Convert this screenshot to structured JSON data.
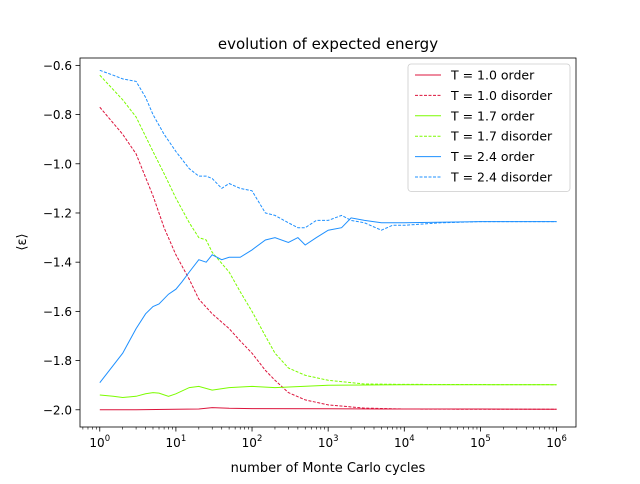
{
  "chart_data": {
    "type": "line",
    "title": "evolution of expected energy",
    "xlabel": "number of Monte Carlo cycles",
    "ylabel": "⟨ε⟩",
    "xscale": "log",
    "xlim": [
      0.55,
      1800000
    ],
    "ylim": [
      -2.07,
      -0.57
    ],
    "x_ticks": [
      {
        "value": 1,
        "base": "10",
        "exp": "0"
      },
      {
        "value": 10,
        "base": "10",
        "exp": "1"
      },
      {
        "value": 100,
        "base": "10",
        "exp": "2"
      },
      {
        "value": 1000,
        "base": "10",
        "exp": "3"
      },
      {
        "value": 10000,
        "base": "10",
        "exp": "4"
      },
      {
        "value": 100000,
        "base": "10",
        "exp": "5"
      },
      {
        "value": 1000000,
        "base": "10",
        "exp": "6"
      }
    ],
    "y_ticks": [
      {
        "value": -2.0,
        "label": "−2.0"
      },
      {
        "value": -1.8,
        "label": "−1.8"
      },
      {
        "value": -1.6,
        "label": "−1.6"
      },
      {
        "value": -1.4,
        "label": "−1.4"
      },
      {
        "value": -1.2,
        "label": "−1.2"
      },
      {
        "value": -1.0,
        "label": "−1.0"
      },
      {
        "value": -0.8,
        "label": "−0.8"
      },
      {
        "value": -0.6,
        "label": "−0.6"
      }
    ],
    "grid": false,
    "legend_position": "top-right",
    "series": [
      {
        "name": "T = 1.0 order",
        "color": "#dc143c",
        "style": "solid",
        "x": [
          1,
          3,
          10,
          20,
          30,
          50,
          100,
          1000,
          10000,
          100000,
          1000000
        ],
        "y": [
          -2.0,
          -2.0,
          -1.998,
          -1.997,
          -1.991,
          -1.994,
          -1.995,
          -1.996,
          -1.997,
          -1.997,
          -1.998
        ]
      },
      {
        "name": "T = 1.0 disorder",
        "color": "#dc143c",
        "style": "dashed",
        "x": [
          1,
          2,
          3,
          5,
          7,
          10,
          15,
          20,
          30,
          50,
          70,
          100,
          150,
          200,
          300,
          500,
          1000,
          3000,
          10000,
          100000,
          1000000
        ],
        "y": [
          -0.77,
          -0.88,
          -0.96,
          -1.13,
          -1.26,
          -1.37,
          -1.47,
          -1.55,
          -1.61,
          -1.67,
          -1.72,
          -1.77,
          -1.84,
          -1.88,
          -1.93,
          -1.96,
          -1.98,
          -1.993,
          -1.997,
          -1.998,
          -1.998
        ]
      },
      {
        "name": "T = 1.7 order",
        "color": "#7cfc00",
        "style": "solid",
        "x": [
          1,
          1.5,
          2,
          3,
          4,
          5,
          6,
          8,
          10,
          15,
          20,
          30,
          50,
          100,
          200,
          1000,
          10000,
          1000000
        ],
        "y": [
          -1.94,
          -1.945,
          -1.95,
          -1.945,
          -1.935,
          -1.93,
          -1.932,
          -1.945,
          -1.935,
          -1.91,
          -1.905,
          -1.92,
          -1.91,
          -1.905,
          -1.91,
          -1.9,
          -1.898,
          -1.898
        ]
      },
      {
        "name": "T = 1.7 disorder",
        "color": "#7cfc00",
        "style": "dashed",
        "x": [
          1,
          2,
          3,
          5,
          7,
          10,
          15,
          20,
          25,
          30,
          50,
          70,
          100,
          150,
          200,
          300,
          500,
          1000,
          3000,
          10000,
          1000000
        ],
        "y": [
          -0.64,
          -0.74,
          -0.81,
          -0.95,
          -1.04,
          -1.14,
          -1.24,
          -1.3,
          -1.31,
          -1.36,
          -1.44,
          -1.52,
          -1.6,
          -1.7,
          -1.77,
          -1.83,
          -1.86,
          -1.88,
          -1.895,
          -1.897,
          -1.898
        ]
      },
      {
        "name": "T = 2.4 order",
        "color": "#1e90ff",
        "style": "solid",
        "x": [
          1,
          2,
          3,
          4,
          5,
          6,
          8,
          10,
          12,
          15,
          20,
          25,
          30,
          40,
          50,
          70,
          100,
          150,
          200,
          300,
          400,
          500,
          700,
          1000,
          1500,
          2000,
          3000,
          5000,
          10000,
          100000,
          1000000
        ],
        "y": [
          -1.89,
          -1.77,
          -1.67,
          -1.61,
          -1.58,
          -1.57,
          -1.53,
          -1.51,
          -1.48,
          -1.44,
          -1.39,
          -1.4,
          -1.37,
          -1.39,
          -1.38,
          -1.38,
          -1.35,
          -1.31,
          -1.3,
          -1.32,
          -1.3,
          -1.33,
          -1.3,
          -1.27,
          -1.26,
          -1.22,
          -1.23,
          -1.24,
          -1.24,
          -1.235,
          -1.235
        ]
      },
      {
        "name": "T = 2.4 disorder",
        "color": "#1e90ff",
        "style": "dashed",
        "x": [
          1,
          1.5,
          2,
          3,
          4,
          5,
          7,
          10,
          15,
          20,
          25,
          30,
          40,
          50,
          70,
          100,
          150,
          200,
          300,
          400,
          500,
          700,
          1000,
          1500,
          2000,
          3000,
          5000,
          7000,
          10000,
          30000,
          100000,
          1000000
        ],
        "y": [
          -0.62,
          -0.64,
          -0.655,
          -0.665,
          -0.73,
          -0.8,
          -0.88,
          -0.95,
          -1.02,
          -1.05,
          -1.05,
          -1.06,
          -1.1,
          -1.08,
          -1.1,
          -1.11,
          -1.2,
          -1.21,
          -1.24,
          -1.26,
          -1.26,
          -1.23,
          -1.23,
          -1.21,
          -1.23,
          -1.24,
          -1.27,
          -1.25,
          -1.25,
          -1.24,
          -1.235,
          -1.235
        ]
      }
    ]
  }
}
